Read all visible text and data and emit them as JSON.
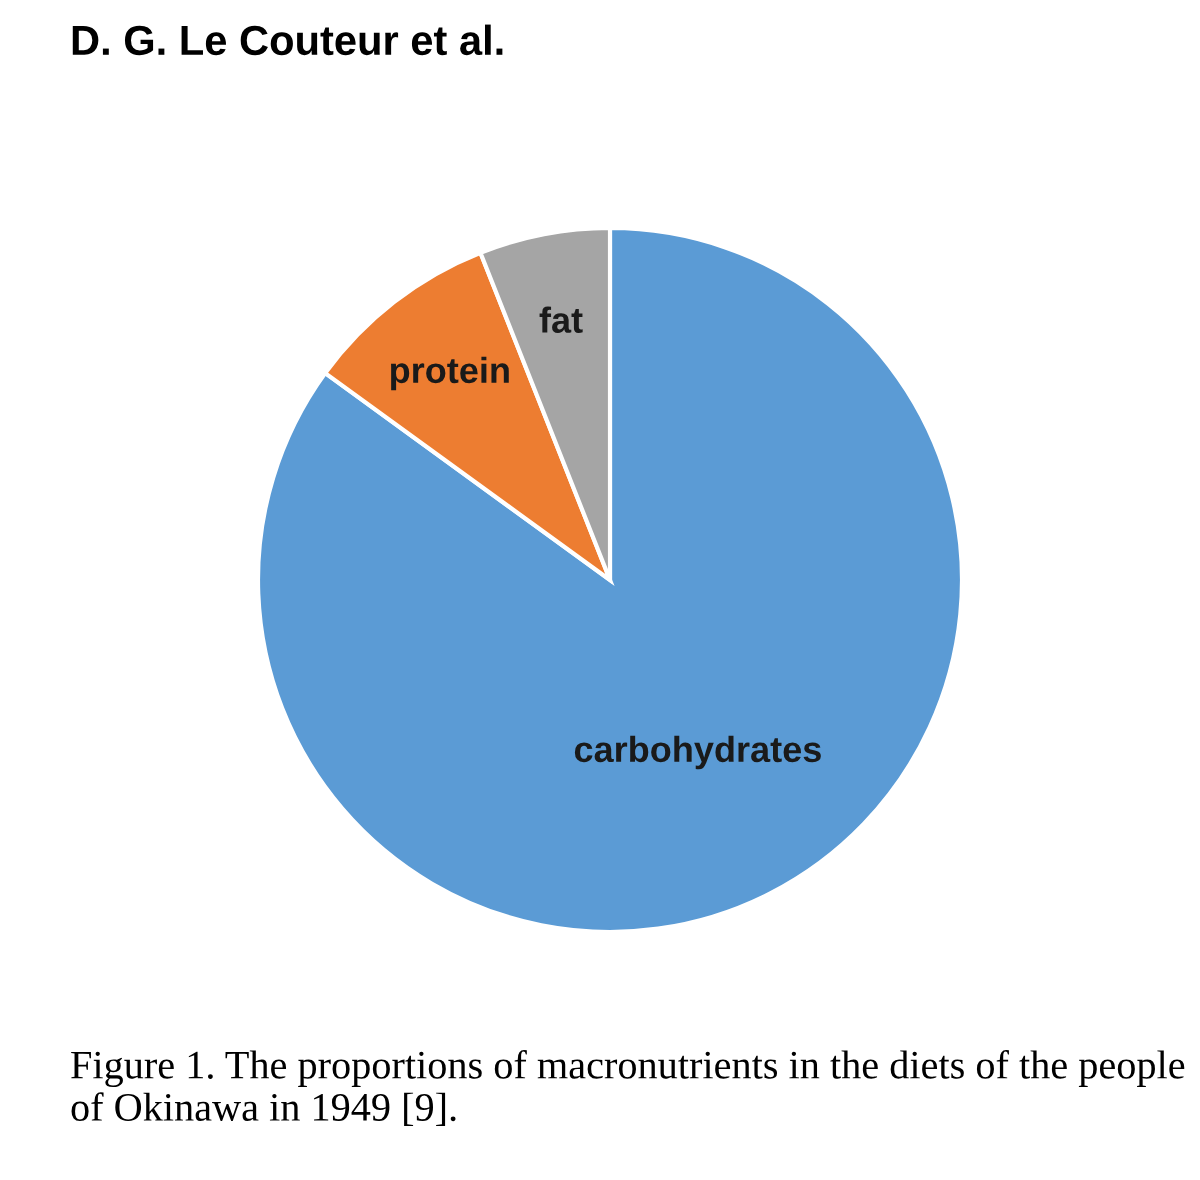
{
  "chart_data": {
    "type": "pie",
    "categories": [
      "carbohydrates",
      "protein",
      "fat"
    ],
    "values": [
      85,
      9,
      6
    ],
    "colors": [
      "#5b9bd5",
      "#ed7d31",
      "#a5a5a5"
    ],
    "annotations": [
      "D. G. Le Couteur et al.",
      "Figure 1. The proportions of macronutrients in the diets of the people of Okinawa in 1949 [9]."
    ]
  }
}
